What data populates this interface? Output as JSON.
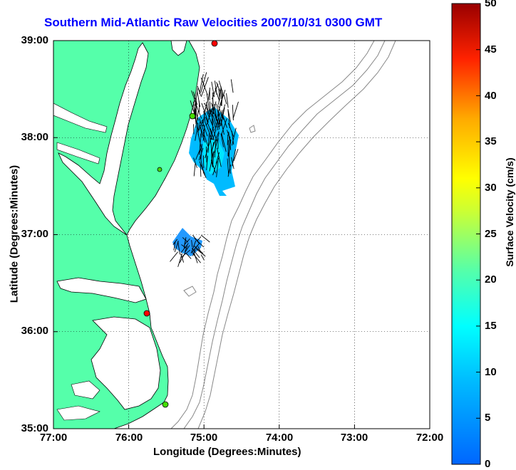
{
  "title": "Southern Mid-Atlantic Raw Velocities 2007/10/31 0300 GMT",
  "map": {
    "x_axis_label": "Longitude (Degrees:Minutes)",
    "y_axis_label": "Latitude (Degrees:Minutes)",
    "x_ticks": [
      "77:00",
      "76:00",
      "75:00",
      "74:00",
      "73:00",
      "72:00"
    ],
    "y_ticks": [
      "39:00",
      "38:00",
      "37:00",
      "36:00",
      "35:00"
    ],
    "lon_range": [
      -77,
      -72
    ],
    "lat_range": [
      35,
      39
    ],
    "grid": "dotted",
    "land_color": "#55ffaa",
    "bathymetry_color": "#888888"
  },
  "colorbar": {
    "label": "Surface Velocity (cm/s)",
    "ticks": [
      "0",
      "5",
      "10",
      "15",
      "20",
      "25",
      "30",
      "35",
      "40",
      "45",
      "50"
    ],
    "range": [
      0,
      50
    ],
    "colormap": "jet"
  },
  "stations": [
    {
      "color": "#ff0000"
    },
    {
      "color": "#44dd00"
    },
    {
      "color": "#ff0000"
    },
    {
      "color": "#44dd00"
    },
    {
      "color": "#44dd00"
    }
  ]
}
